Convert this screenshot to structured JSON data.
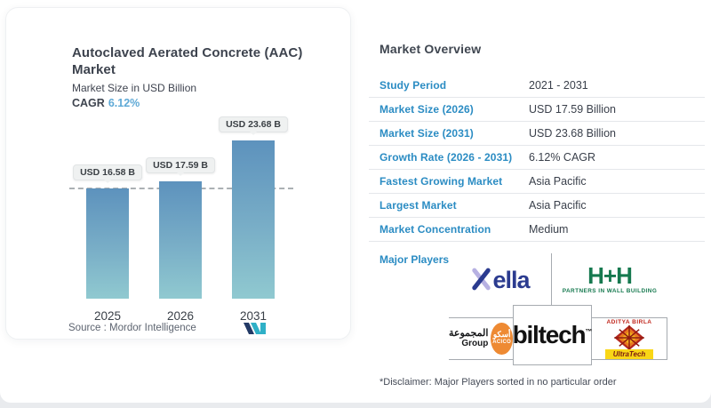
{
  "chart_card": {
    "title_line1": "Autoclaved Aerated Concrete (AAC)",
    "title_line2": "Market",
    "subtitle": "Market Size in USD Billion",
    "cagr_label": "CAGR",
    "cagr_value": "6.12%",
    "source_text": "Source :  Mordor Intelligence"
  },
  "chart_data": {
    "type": "bar",
    "title": "Autoclaved Aerated Concrete (AAC) Market",
    "ylabel": "Market Size in USD Billion",
    "categories": [
      "2025",
      "2026",
      "2031"
    ],
    "values": [
      16.58,
      17.59,
      23.68
    ],
    "bar_labels": [
      "USD 16.58 B",
      "USD 17.59 B",
      "USD 23.68 B"
    ],
    "reference_line": 16.58,
    "grid": false,
    "bar_gradient_top": "#5d92bd",
    "bar_gradient_bottom": "#90c9d0"
  },
  "overview": {
    "title": "Market Overview",
    "rows": [
      {
        "label": "Study Period",
        "value": "2021 - 2031"
      },
      {
        "label": "Market Size (2026)",
        "value": "USD 17.59 Billion"
      },
      {
        "label": "Market Size (2031)",
        "value": "USD 23.68 Billion"
      },
      {
        "label": "Growth Rate (2026 - 2031)",
        "value": "6.12% CAGR"
      },
      {
        "label": "Fastest Growing Market",
        "value": "Asia Pacific"
      },
      {
        "label": "Largest Market",
        "value": "Asia Pacific"
      },
      {
        "label": "Market Concentration",
        "value": "Medium"
      }
    ],
    "major_players_label": "Major Players",
    "disclaimer": "*Disclaimer: Major Players sorted in no particular order"
  },
  "logos": {
    "xella": {
      "ella": "ella"
    },
    "hh": {
      "main": "H+H",
      "tagline": "PARTNERS IN WALL BUILDING"
    },
    "acico": {
      "arabic": "المجموعة",
      "group": "Group",
      "circle_arabic": "أسكو",
      "circle_en": "ACICO"
    },
    "biltech": {
      "main": "biltech",
      "tm": "™"
    },
    "ultratech": {
      "top": "ADITYA BIRLA",
      "band": "UltraTech"
    }
  },
  "colors": {
    "label_blue": "#2b8cc3",
    "cagr_blue": "#5ea9d6",
    "dark_text": "#3d434e",
    "hh_green": "#16794f",
    "xella_navy": "#2b3b8f",
    "xella_lavender": "#b7b1e2",
    "acico_orange": "#ee8a33",
    "ultratech_red": "#c0261c",
    "ultratech_yellow": "#f9d616"
  }
}
